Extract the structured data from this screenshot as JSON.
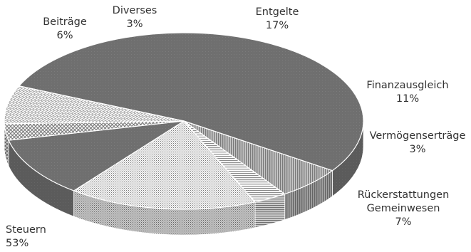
{
  "chart_data": {
    "type": "pie",
    "style": "3d-tilted",
    "title": "",
    "legend": "none",
    "slices": [
      {
        "label": "Steuern",
        "value": 53,
        "pct_label": "53%",
        "color": "#6f6f6f",
        "pattern": "solid"
      },
      {
        "label": "Beiträge",
        "value": 6,
        "pct_label": "6%",
        "color": "#9a9a9a",
        "pattern": "vertical-lines"
      },
      {
        "label": "Diverses",
        "value": 3,
        "pct_label": "3%",
        "color": "#d0d0d0",
        "pattern": "horizontal-lines"
      },
      {
        "label": "Entgelte",
        "value": 17,
        "pct_label": "17%",
        "color": "#c4c4c4",
        "pattern": "fine-checker"
      },
      {
        "label": "Finanzausgleich",
        "value": 11,
        "pct_label": "11%",
        "color": "#6f6f6f",
        "pattern": "solid"
      },
      {
        "label": "Vermögenserträge",
        "value": 3,
        "pct_label": "3%",
        "color": "#cfcfcf",
        "pattern": "diamond-grid"
      },
      {
        "label": "Rückerstattungen Gemeinwesen",
        "value": 7,
        "pct_label": "7%",
        "color": "#d8d8d8",
        "pattern": "brick"
      }
    ]
  }
}
